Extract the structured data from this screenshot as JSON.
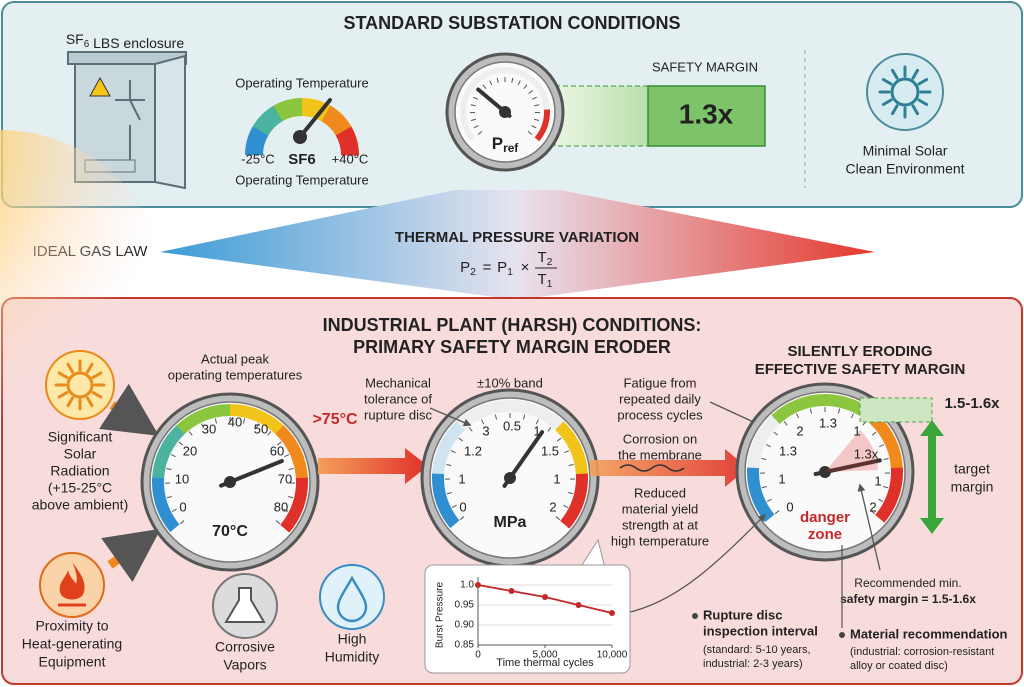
{
  "top": {
    "title": "STANDARD SUBSTATION CONDITIONS",
    "enclosure": {
      "main": "SF",
      "sub": "6",
      "rest": " LBS enclosure"
    },
    "temp_gauge": {
      "top_label": "Operating Temperature",
      "min": "-25°C",
      "center": "SF6",
      "max": "+40°C",
      "bottom_label": "Operating Temperature"
    },
    "ref_gauge": {
      "main": "P",
      "sub": "ref"
    },
    "safety_margin": {
      "label": "SAFETY MARGIN",
      "value": "1.3x"
    },
    "environment": [
      "Minimal Solar",
      "Clean Environment"
    ]
  },
  "middle": {
    "left_label": "IDEAL GAS LAW",
    "title": "THERMAL PRESSURE VARIATION",
    "formula": {
      "lhs": [
        "P",
        "2"
      ],
      "eq": "=",
      "rhs": [
        "P",
        "1"
      ],
      "op": "×",
      "numerator": [
        "T",
        "2"
      ],
      "denominator": [
        "T",
        "1"
      ]
    }
  },
  "bottom": {
    "title": [
      "INDUSTRIAL PLANT (HARSH) CONDITIONS:",
      "PRIMARY SAFETY MARGIN ERODER"
    ],
    "solar": [
      "Significant",
      "Solar",
      "Radiation",
      "(+15-25°C",
      "above ambient)"
    ],
    "heat": [
      "Proximity to",
      "Heat-generating",
      "Equipment"
    ],
    "vapors": [
      "Corrosive",
      "Vapors"
    ],
    "humidity": [
      "High",
      "Humidity"
    ],
    "temp_gauge": {
      "caption": [
        "Actual peak",
        "operating temperatures"
      ],
      "scale": [
        "0",
        "10",
        "20",
        "30",
        "40",
        "50",
        "60",
        "70",
        "80"
      ],
      "alert": ">75°C",
      "reading": "70°C"
    },
    "pressure_gauge": {
      "band": "±10% band",
      "scale": [
        "0",
        "1",
        "1.2",
        "3",
        "0.5",
        "1",
        "1.5",
        "1",
        "2"
      ],
      "unit": "MPa"
    },
    "tolerance": [
      "Mechanical",
      "tolerance of",
      "rupture disc"
    ],
    "fatigue": [
      "Fatigue from",
      "repeated daily",
      "process cycles"
    ],
    "corrosion": [
      "Corrosion on",
      "the membrane"
    ],
    "yield": [
      "Reduced",
      "material yield",
      "strength at at",
      "high temperature"
    ],
    "margin_gauge": {
      "title": [
        "SILENTLY ERODING",
        "EFFECTIVE SAFETY MARGIN"
      ],
      "scale": [
        "0",
        "1",
        "1.3",
        "2",
        "1.3",
        "1",
        "1.3x",
        "1",
        "2"
      ],
      "zone": [
        "danger",
        "zone"
      ]
    },
    "target": {
      "value": "1.5-1.6x",
      "label": [
        "target",
        "margin"
      ]
    },
    "recommended": {
      "line1": "Recommended min.",
      "line2": "safety margin = 1.5-1.6x"
    },
    "inspection": {
      "title": [
        "Rupture disc",
        "inspection interval"
      ],
      "note": [
        "(standard: 5-10 years,",
        "industrial: 2-3 years)"
      ]
    },
    "material": {
      "title": "Material recommendation",
      "note": [
        "(industrial: corrosion-resistant",
        "alloy or coated disc)"
      ]
    }
  },
  "chart_data": {
    "type": "line",
    "y_label": "Burst Pressure",
    "x_label": "Time thermal cycles",
    "x": [
      0,
      2500,
      5000,
      7500,
      10000
    ],
    "values": [
      1.0,
      0.985,
      0.97,
      0.95,
      0.93
    ],
    "color": "#c62828",
    "xlim": [
      0,
      10000
    ],
    "ylim": [
      0.85,
      1.0
    ],
    "xticks": [
      0,
      {
        "value": 5000,
        "label": "5,000"
      },
      {
        "value": 10000,
        "label": "10,000"
      }
    ],
    "yticks": [
      0.85,
      {
        "value": 0.9,
        "label": "0.90"
      },
      0.95,
      {
        "value": 1,
        "label": "1.0"
      }
    ],
    "grid": true
  }
}
